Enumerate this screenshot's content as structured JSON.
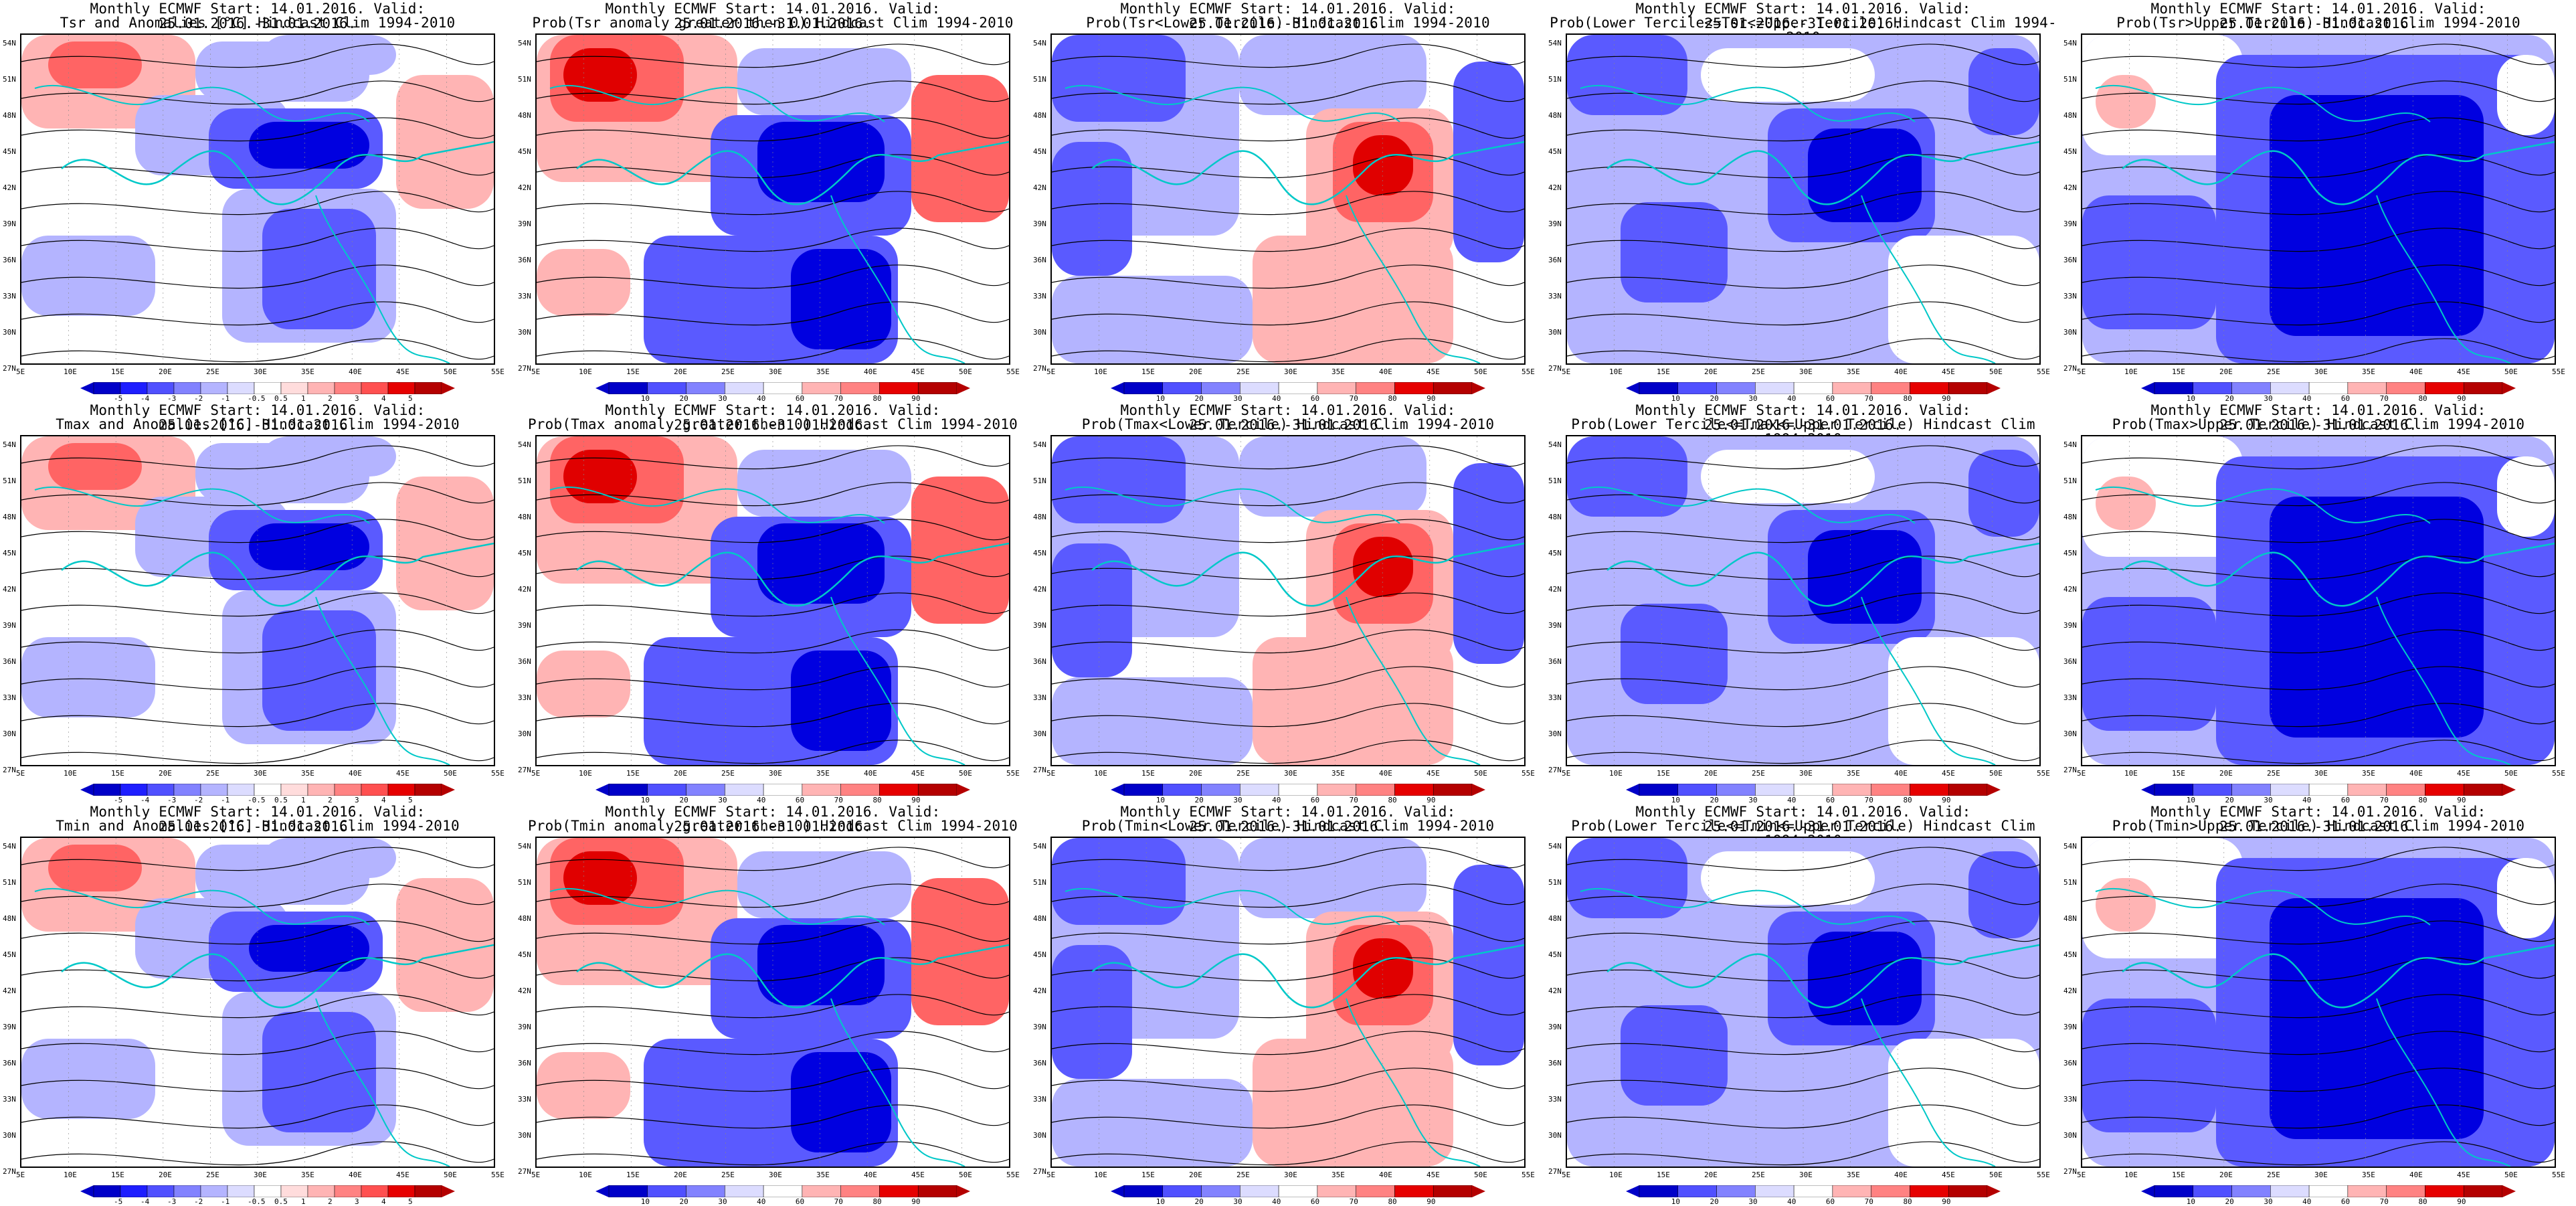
{
  "title_line1": "Monthly ECMWF Start: 14.01.2016. Valid: 25.01.2016.-31.01.2016.",
  "lat_labels": [
    "54N",
    "51N",
    "48N",
    "45N",
    "42N",
    "39N",
    "36N",
    "33N",
    "30N",
    "27N"
  ],
  "lon_labels": [
    "5E",
    "10E",
    "15E",
    "20E",
    "25E",
    "30E",
    "35E",
    "40E",
    "45E",
    "50E",
    "55E"
  ],
  "anomaly_ticks": [
    "-5",
    "-4",
    "-3",
    "-2",
    "-1",
    "-0.5",
    "0.5",
    "1",
    "2",
    "3",
    "4",
    "5"
  ],
  "prob_ticks": [
    "10",
    "20",
    "30",
    "40",
    "60",
    "70",
    "80",
    "90"
  ],
  "colors": {
    "blue_dark": "#0000e0",
    "blue_mid": "#5a5aff",
    "blue_light": "#b4b4ff",
    "red_dark": "#e00000",
    "red_mid": "#ff6464",
    "red_light": "#ffb4b4",
    "coastline": "#00c8c8",
    "contour": "#000000"
  },
  "panels": [
    {
      "title2": "Tsr and Anomalies [°C] Hindcast Clim 1994-2010",
      "scale": "anomaly",
      "pattern": "anomaly"
    },
    {
      "title2": "Prob(Tsr anomaly greater then 0) Hindcast Clim 1994-2010",
      "scale": "prob",
      "pattern": "prob_gt0"
    },
    {
      "title2": "Prob(Tsr<Lower Tercile) Hindcast Clim 1994-2010",
      "scale": "prob",
      "pattern": "lower"
    },
    {
      "title2": "Prob(Lower Tercile<=Tsr<=Upper Tercile) Hindcast Clim 1994-2010",
      "scale": "prob",
      "pattern": "middle"
    },
    {
      "title2": "Prob(Tsr>Upper Tercile) Hindcast Clim 1994-2010",
      "scale": "prob",
      "pattern": "upper"
    },
    {
      "title2": "Tmax and Anomalies [°C] Hindcast Clim 1994-2010",
      "scale": "anomaly",
      "pattern": "anomaly"
    },
    {
      "title2": "Prob(Tmax anomaly greater then 0) Hindcast Clim 1994-2010",
      "scale": "prob",
      "pattern": "prob_gt0"
    },
    {
      "title2": "Prob(Tmax<Lower Tercile) Hindcast Clim 1994-2010",
      "scale": "prob",
      "pattern": "lower"
    },
    {
      "title2": "Prob(Lower Tercile<=Tmax<=Upper Tercile) Hindcast Clim 1994-2010",
      "scale": "prob",
      "pattern": "middle"
    },
    {
      "title2": "Prob(Tmax>Upper Tercile) Hindcast Clim 1994-2010",
      "scale": "prob",
      "pattern": "upper"
    },
    {
      "title2": "Tmin and Anomalies [°C] Hindcast Clim 1994-2010",
      "scale": "anomaly",
      "pattern": "anomaly"
    },
    {
      "title2": "Prob(Tmin anomaly greater then 0) Hindcast Clim 1994-2010",
      "scale": "prob",
      "pattern": "prob_gt0"
    },
    {
      "title2": "Prob(Tmin<Lower Tercile) Hindcast Clim 1994-2010",
      "scale": "prob",
      "pattern": "lower"
    },
    {
      "title2": "Prob(Lower Tercile<=Tmin<=Upper Tercile) Hindcast Clim 1994-2010",
      "scale": "prob",
      "pattern": "middle"
    },
    {
      "title2": "Prob(Tmin>Upper Tercile) Hindcast Clim 1994-2010",
      "scale": "prob",
      "pattern": "upper"
    }
  ]
}
